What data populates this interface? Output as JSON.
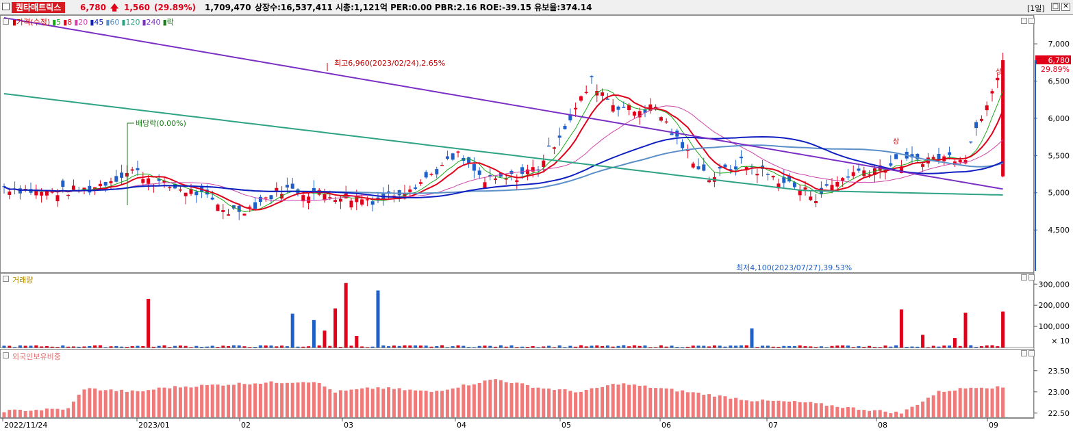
{
  "header": {
    "name": "퀀타매트릭스",
    "price": "6,780",
    "change": "1,560",
    "change_pct": "(29.89%)",
    "volume": "1,709,470",
    "info": "상장수:16,537,411  시총:1,121억  PER:0.00  PBR:2.16  ROE:-39.15  유보율:374.14",
    "period": "[1일]",
    "btn_restore": "□",
    "btn_close": "✕"
  },
  "price_legend": [
    {
      "label": "가격(수정)",
      "color": "#d40000"
    },
    {
      "label": "5",
      "color": "#19a819"
    },
    {
      "label": "8",
      "color": "#e0001a"
    },
    {
      "label": "20",
      "color": "#cc44aa"
    },
    {
      "label": "45",
      "color": "#1020c0"
    },
    {
      "label": "60",
      "color": "#5b8fc8"
    },
    {
      "label": "120",
      "color": "#2ea385"
    },
    {
      "label": "240",
      "color": "#7b2fc4"
    },
    {
      "label": "락",
      "color": "#1a7a1a"
    }
  ],
  "volume_legend": "거래량",
  "foreign_legend": "외국인보유비중",
  "annotations": {
    "high": "최고6,960(2023/02/24),2.65%",
    "low": "최저4,100(2023/07/27),39.53%",
    "dividend": "배당락(0.00%)",
    "limit_up_1": "상",
    "limit_up_2": "상"
  },
  "current_price_tag": "6,780",
  "current_pct_tag": "29.89%",
  "volume_unit": "× 10",
  "chart_data": {
    "type": "candlestick",
    "x_ticks": [
      "2022/11/24",
      "2023/01",
      "02",
      "03",
      "04",
      "05",
      "06",
      "07",
      "08",
      "09"
    ],
    "price_axis": {
      "ticks": [
        "4,500",
        "5,000",
        "5,500",
        "6,000",
        "6,500",
        "7,000"
      ],
      "ylim": [
        3950,
        7350
      ]
    },
    "volume_axis": {
      "ticks": [
        "100,000",
        "200,000",
        "300,000"
      ],
      "ylim": [
        0,
        330000
      ]
    },
    "foreign_axis": {
      "ticks": [
        "22.50",
        "23.00",
        "23.50"
      ],
      "ylim": [
        22.4,
        23.9
      ]
    },
    "last_close": 6780,
    "high": {
      "value": 6960,
      "date": "2023/02/24"
    },
    "low": {
      "value": 4100,
      "date": "2023/07/27"
    }
  },
  "colors": {
    "up": "#e0001a",
    "down": "#1e5fc8",
    "ratio_bar": "#f07a7a"
  }
}
